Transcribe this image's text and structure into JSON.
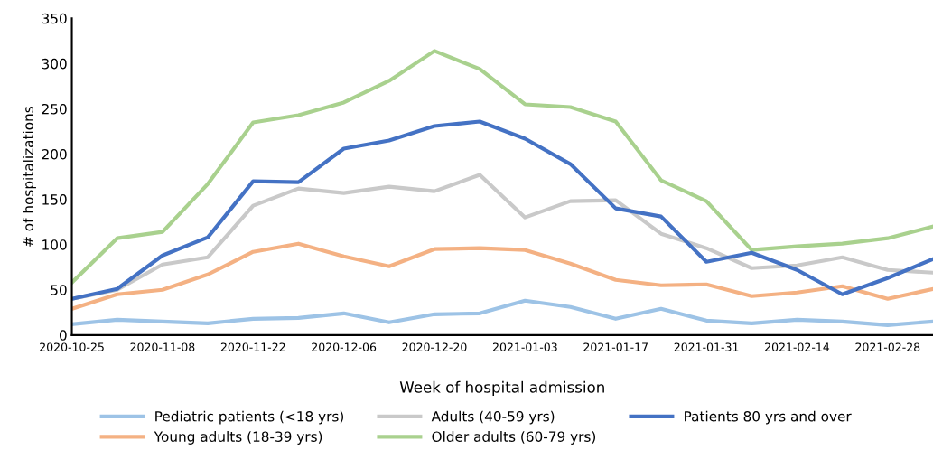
{
  "chart_data": {
    "type": "line",
    "xlabel": "Week of hospital admission",
    "ylabel": "# of hospitalizations",
    "categories": [
      "2020-10-25",
      null,
      "2020-11-08",
      null,
      "2020-11-22",
      null,
      "2020-12-06",
      null,
      "2020-12-20",
      null,
      "2021-01-03",
      null,
      "2021-01-17",
      null,
      "2021-01-31",
      null,
      "2021-02-14",
      null,
      "2021-02-28",
      null
    ],
    "series": [
      {
        "name": "Pediatric patients (<18 yrs)",
        "color": "#9dc3e6",
        "values": [
          12,
          17,
          15,
          13,
          18,
          19,
          24,
          14,
          23,
          24,
          38,
          31,
          18,
          29,
          16,
          13,
          17,
          15,
          11,
          15
        ]
      },
      {
        "name": "Young adults (18-39 yrs)",
        "color": "#f4b183",
        "values": [
          29,
          45,
          50,
          67,
          92,
          101,
          87,
          76,
          95,
          96,
          94,
          79,
          61,
          55,
          56,
          43,
          47,
          54,
          40,
          51
        ]
      },
      {
        "name": "Adults (40-59 yrs)",
        "color": "#c9c9c9",
        "values": [
          40,
          50,
          78,
          86,
          143,
          162,
          157,
          164,
          159,
          177,
          130,
          148,
          149,
          112,
          96,
          74,
          77,
          86,
          72,
          69
        ]
      },
      {
        "name": "Older adults (60-79 yrs)",
        "color": "#a9d18e",
        "values": [
          58,
          107,
          114,
          167,
          235,
          243,
          257,
          281,
          314,
          294,
          255,
          252,
          236,
          171,
          148,
          94,
          98,
          101,
          107,
          120
        ]
      },
      {
        "name": "Patients 80 yrs and over",
        "color": "#4472c4",
        "values": [
          40,
          51,
          88,
          108,
          170,
          169,
          206,
          215,
          231,
          236,
          217,
          189,
          140,
          131,
          81,
          91,
          72,
          45,
          63,
          84
        ]
      }
    ],
    "ylim": [
      0,
      350
    ],
    "yticks": [
      0,
      50,
      100,
      150,
      200,
      250,
      300,
      350
    ],
    "grid": false,
    "legend": "bottom",
    "marker": "none",
    "line_style": "solid"
  }
}
